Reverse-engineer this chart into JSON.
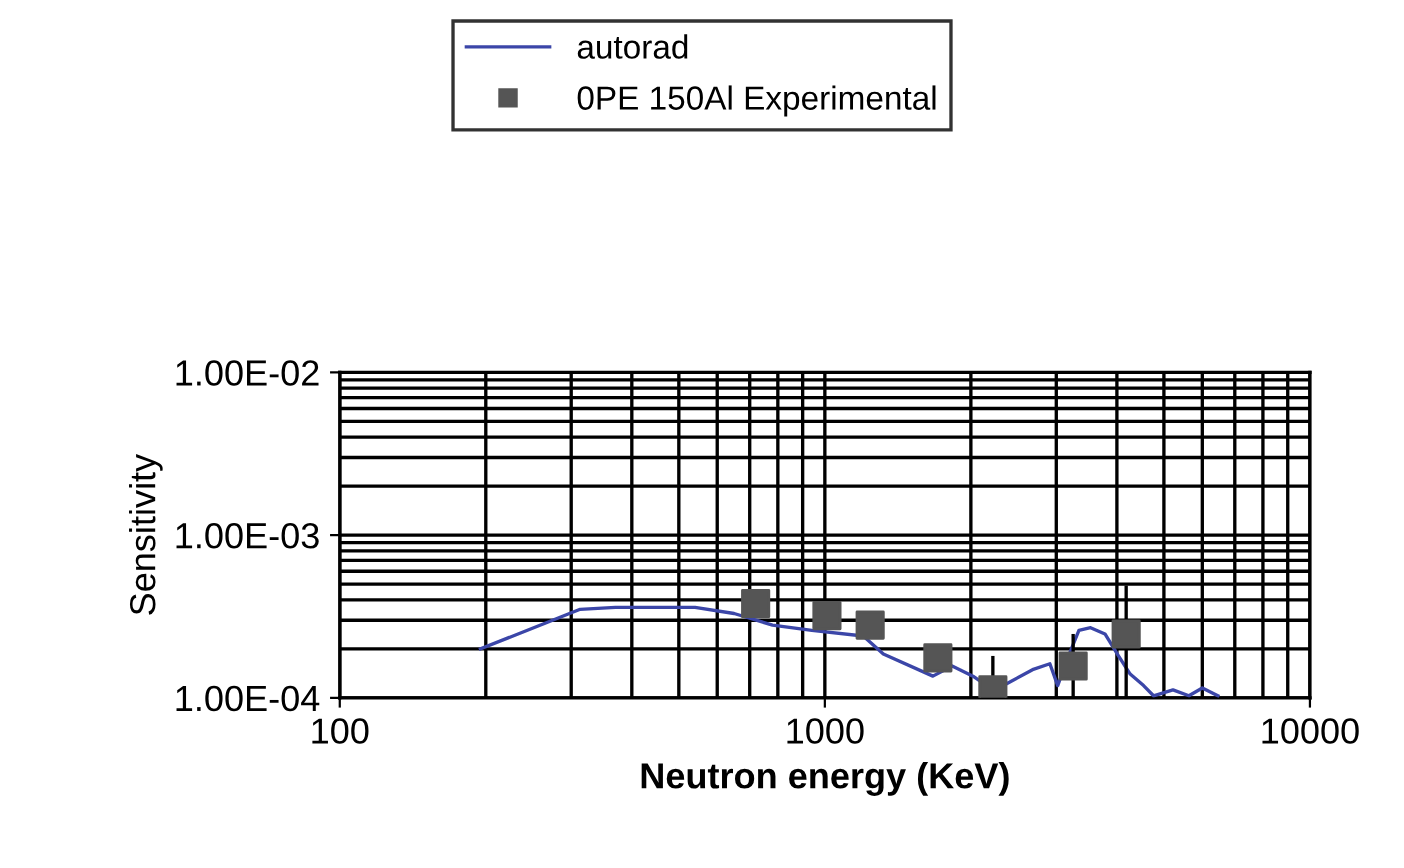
{
  "chart_data": {
    "type": "line",
    "xlabel": "Neutron energy (KeV)",
    "ylabel": "Sensitivity",
    "log": "xy",
    "xlim": [
      100,
      10000
    ],
    "xticks": [
      100,
      1000,
      10000
    ],
    "ylim": [
      0.0001,
      0.01
    ],
    "yticks": [
      {
        "value": 0.0001,
        "label": "1.00E-04"
      },
      {
        "value": 0.001,
        "label": "1.00E-03"
      },
      {
        "value": 0.01,
        "label": "1.00E-02"
      }
    ],
    "grid": true,
    "legend": "top",
    "series": [
      {
        "name": "autorad",
        "color": "#3b46a8",
        "marker": "none",
        "line_style": "solid",
        "x": [
          195,
          313,
          370,
          540,
          650,
          780,
          940,
          1200,
          1320,
          1670,
          1830,
          2020,
          2220,
          2370,
          2680,
          2910,
          3020,
          3190,
          3340,
          3530,
          3780,
          4030,
          4260,
          4540,
          4760,
          5220,
          5630,
          6000,
          6460
        ],
        "values": [
          0.0002,
          0.00035,
          0.00036,
          0.00036,
          0.00033,
          0.00028,
          0.00026,
          0.00024,
          0.000186,
          0.000136,
          0.000157,
          0.000136,
          0.000112,
          0.000122,
          0.000149,
          0.000162,
          0.000119,
          0.000186,
          0.00026,
          0.00027,
          0.000247,
          0.000181,
          0.00014,
          0.000119,
          0.000103,
          0.000112,
          0.000103,
          0.000115,
          0.000103
        ]
      },
      {
        "name": "0PE 150Al Experimental",
        "type": "scatter",
        "color": "#555555",
        "marker": "square",
        "x": [
          720,
          1010,
          1240,
          1710,
          2220,
          3250,
          4180
        ],
        "values": [
          0.00038,
          0.00032,
          0.00028,
          0.000176,
          0.000112,
          0.000157,
          0.000247
        ],
        "errors": [
          null,
          null,
          null,
          null,
          [
            0.0001,
            0.000181
          ],
          [
            0.0001,
            0.000247
          ],
          [
            0.0001,
            0.00049
          ]
        ]
      }
    ]
  }
}
